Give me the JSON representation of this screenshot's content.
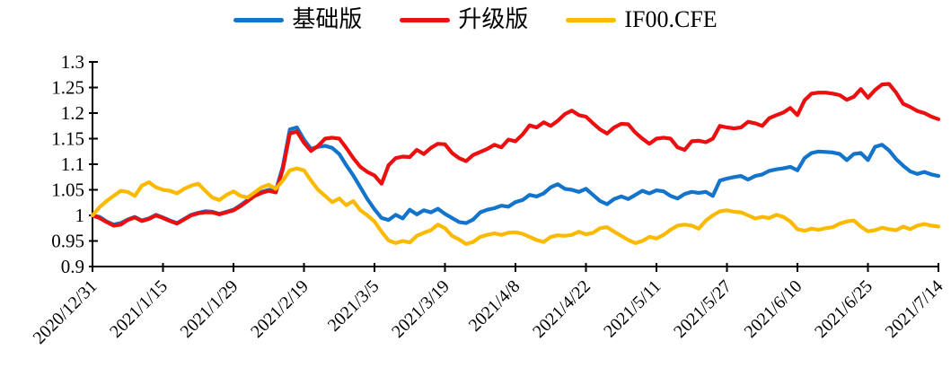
{
  "chart": {
    "legend": {
      "items": [
        {
          "label": "基础版",
          "color": "#1374CC"
        },
        {
          "label": "升级版",
          "color": "#EB0F10"
        },
        {
          "label": "IF00.CFE",
          "color": "#FBBA00"
        }
      ]
    }
  },
  "chart_data": {
    "type": "line",
    "title": "",
    "xlabel": "",
    "ylabel": "",
    "ylim": [
      0.9,
      1.3
    ],
    "grid": false,
    "legend_position": "top",
    "y_ticks": [
      0.9,
      0.95,
      1,
      1.05,
      1.1,
      1.15,
      1.2,
      1.25,
      1.3
    ],
    "y_tick_labels": [
      "0.9",
      "0.95",
      "1",
      "1.05",
      "1.1",
      "1.15",
      "1.2",
      "1.25",
      "1.3"
    ],
    "x_tick_labels": [
      "2020/12/31",
      "2021/1/15",
      "2021/1/29",
      "2021/2/19",
      "2021/3/5",
      "2021/3/19",
      "2021/4/8",
      "2021/4/22",
      "2021/5/11",
      "2021/5/27",
      "2021/6/10",
      "2021/6/25",
      "2021/7/14"
    ],
    "series": [
      {
        "name": "基础版",
        "color": "#1374CC",
        "values": [
          1.0,
          0.997,
          0.988,
          0.982,
          0.985,
          0.992,
          0.997,
          0.99,
          0.994,
          1.001,
          0.996,
          0.99,
          0.985,
          0.993,
          1.001,
          1.005,
          1.008,
          1.007,
          1.003,
          1.007,
          1.011,
          1.02,
          1.03,
          1.04,
          1.046,
          1.05,
          1.048,
          1.095,
          1.168,
          1.172,
          1.148,
          1.13,
          1.134,
          1.136,
          1.132,
          1.12,
          1.098,
          1.078,
          1.055,
          1.032,
          1.012,
          0.995,
          0.991,
          1.001,
          0.994,
          1.011,
          1.002,
          1.01,
          1.006,
          1.013,
          1.003,
          0.995,
          0.987,
          0.985,
          0.992,
          1.006,
          1.011,
          1.014,
          1.019,
          1.017,
          1.026,
          1.03,
          1.04,
          1.037,
          1.043,
          1.055,
          1.061,
          1.052,
          1.05,
          1.046,
          1.052,
          1.04,
          1.028,
          1.022,
          1.032,
          1.037,
          1.032,
          1.04,
          1.048,
          1.043,
          1.049,
          1.047,
          1.038,
          1.033,
          1.042,
          1.046,
          1.044,
          1.046,
          1.038,
          1.068,
          1.072,
          1.075,
          1.077,
          1.07,
          1.077,
          1.08,
          1.087,
          1.09,
          1.092,
          1.095,
          1.088,
          1.112,
          1.122,
          1.125,
          1.124,
          1.123,
          1.12,
          1.108,
          1.12,
          1.122,
          1.108,
          1.134,
          1.138,
          1.127,
          1.11,
          1.097,
          1.086,
          1.081,
          1.085,
          1.08,
          1.077
        ]
      },
      {
        "name": "升级版",
        "color": "#EB0F10",
        "values": [
          1.0,
          0.995,
          0.987,
          0.98,
          0.982,
          0.991,
          0.996,
          0.989,
          0.993,
          1.0,
          0.995,
          0.989,
          0.984,
          0.992,
          1.0,
          1.004,
          1.006,
          1.006,
          1.002,
          1.006,
          1.01,
          1.018,
          1.028,
          1.038,
          1.044,
          1.048,
          1.045,
          1.09,
          1.16,
          1.164,
          1.142,
          1.126,
          1.136,
          1.15,
          1.152,
          1.15,
          1.132,
          1.112,
          1.095,
          1.085,
          1.078,
          1.062,
          1.098,
          1.112,
          1.115,
          1.114,
          1.128,
          1.12,
          1.132,
          1.14,
          1.139,
          1.122,
          1.112,
          1.106,
          1.118,
          1.124,
          1.13,
          1.138,
          1.133,
          1.148,
          1.145,
          1.158,
          1.176,
          1.172,
          1.182,
          1.175,
          1.185,
          1.198,
          1.205,
          1.196,
          1.193,
          1.18,
          1.168,
          1.16,
          1.172,
          1.179,
          1.178,
          1.162,
          1.15,
          1.14,
          1.15,
          1.152,
          1.15,
          1.133,
          1.128,
          1.145,
          1.146,
          1.143,
          1.15,
          1.175,
          1.172,
          1.17,
          1.172,
          1.183,
          1.18,
          1.175,
          1.19,
          1.196,
          1.201,
          1.21,
          1.196,
          1.225,
          1.238,
          1.24,
          1.24,
          1.238,
          1.235,
          1.226,
          1.232,
          1.247,
          1.23,
          1.245,
          1.256,
          1.257,
          1.24,
          1.218,
          1.212,
          1.204,
          1.2,
          1.193,
          1.188
        ]
      },
      {
        "name": "IF00.CFE",
        "color": "#FBBA00",
        "values": [
          1.0,
          1.016,
          1.028,
          1.038,
          1.048,
          1.046,
          1.038,
          1.058,
          1.065,
          1.055,
          1.05,
          1.048,
          1.043,
          1.052,
          1.058,
          1.062,
          1.048,
          1.035,
          1.03,
          1.04,
          1.047,
          1.038,
          1.035,
          1.045,
          1.055,
          1.06,
          1.052,
          1.068,
          1.088,
          1.092,
          1.088,
          1.068,
          1.05,
          1.038,
          1.026,
          1.033,
          1.02,
          1.028,
          1.01,
          1.0,
          0.988,
          0.968,
          0.951,
          0.946,
          0.95,
          0.947,
          0.96,
          0.966,
          0.971,
          0.982,
          0.975,
          0.96,
          0.953,
          0.944,
          0.948,
          0.958,
          0.962,
          0.965,
          0.962,
          0.966,
          0.967,
          0.964,
          0.958,
          0.952,
          0.948,
          0.958,
          0.961,
          0.96,
          0.962,
          0.968,
          0.963,
          0.966,
          0.975,
          0.977,
          0.968,
          0.96,
          0.952,
          0.946,
          0.95,
          0.958,
          0.955,
          0.962,
          0.972,
          0.98,
          0.982,
          0.98,
          0.974,
          0.99,
          1.0,
          1.008,
          1.01,
          1.007,
          1.006,
          1.0,
          0.994,
          0.997,
          0.995,
          1.001,
          0.997,
          0.988,
          0.973,
          0.97,
          0.974,
          0.972,
          0.975,
          0.977,
          0.984,
          0.988,
          0.99,
          0.978,
          0.969,
          0.971,
          0.976,
          0.973,
          0.971,
          0.978,
          0.973,
          0.98,
          0.983,
          0.98,
          0.978
        ]
      }
    ]
  }
}
